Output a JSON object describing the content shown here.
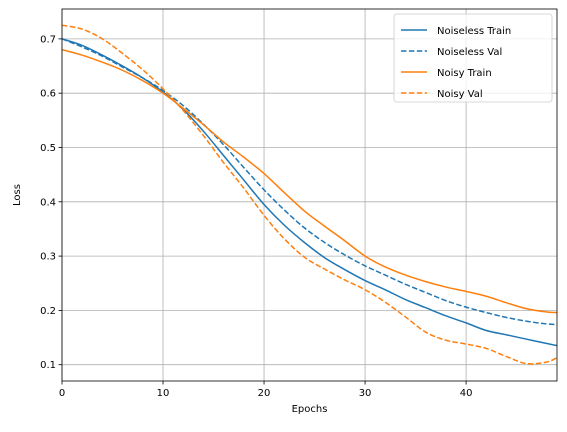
{
  "chart_data": {
    "type": "line",
    "title": "",
    "xlabel": "Epochs",
    "ylabel": "Loss",
    "xlim": [
      0,
      49
    ],
    "ylim": [
      0.07,
      0.755
    ],
    "xticks": [
      0,
      10,
      20,
      30,
      40
    ],
    "yticks": [
      0.1,
      0.2,
      0.3,
      0.4,
      0.5,
      0.6,
      0.7
    ],
    "grid": true,
    "legend_position": "top-right",
    "x": [
      0,
      2,
      4,
      6,
      8,
      10,
      12,
      14,
      16,
      18,
      20,
      22,
      24,
      26,
      28,
      30,
      32,
      34,
      36,
      38,
      40,
      42,
      44,
      46,
      48,
      49
    ],
    "series": [
      {
        "name": "Noiseless Train",
        "color": "#1f77b4",
        "style": "solid",
        "values": [
          0.7,
          0.688,
          0.67,
          0.65,
          0.628,
          0.602,
          0.57,
          0.53,
          0.485,
          0.44,
          0.395,
          0.357,
          0.325,
          0.297,
          0.275,
          0.255,
          0.238,
          0.22,
          0.205,
          0.19,
          0.177,
          0.163,
          0.155,
          0.147,
          0.139,
          0.135
        ]
      },
      {
        "name": "Noiseless Val",
        "color": "#1f77b4",
        "style": "dashed",
        "values": [
          0.7,
          0.685,
          0.668,
          0.648,
          0.628,
          0.605,
          0.577,
          0.543,
          0.505,
          0.463,
          0.422,
          0.385,
          0.352,
          0.325,
          0.302,
          0.282,
          0.265,
          0.248,
          0.233,
          0.218,
          0.206,
          0.196,
          0.187,
          0.18,
          0.175,
          0.174
        ]
      },
      {
        "name": "Noisy Train",
        "color": "#ff7f0e",
        "style": "solid",
        "values": [
          0.68,
          0.67,
          0.657,
          0.642,
          0.623,
          0.6,
          0.572,
          0.542,
          0.51,
          0.482,
          0.452,
          0.417,
          0.383,
          0.355,
          0.328,
          0.3,
          0.28,
          0.265,
          0.253,
          0.243,
          0.235,
          0.226,
          0.214,
          0.203,
          0.197,
          0.196
        ]
      },
      {
        "name": "Noisy Val",
        "color": "#ff7f0e",
        "style": "dashed",
        "values": [
          0.725,
          0.718,
          0.7,
          0.673,
          0.643,
          0.608,
          0.568,
          0.522,
          0.472,
          0.425,
          0.375,
          0.332,
          0.298,
          0.276,
          0.256,
          0.238,
          0.215,
          0.188,
          0.16,
          0.145,
          0.138,
          0.13,
          0.115,
          0.102,
          0.105,
          0.113
        ]
      }
    ]
  }
}
